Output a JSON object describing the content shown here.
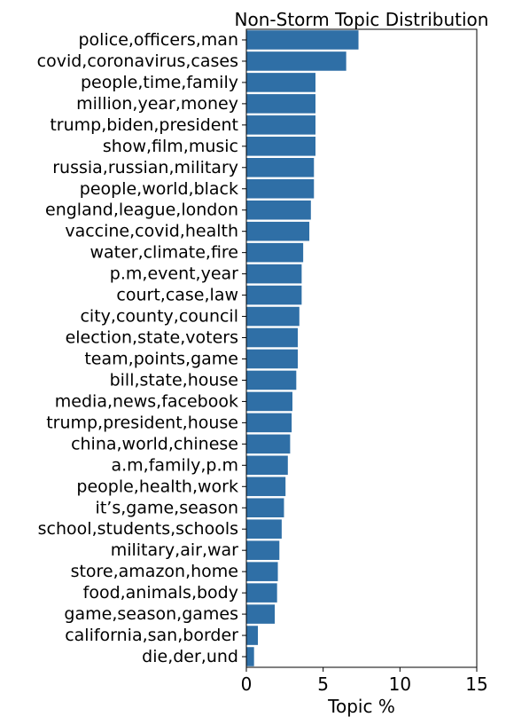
{
  "chart_data": {
    "type": "bar",
    "orientation": "horizontal",
    "title": "Non-Storm Topic Distribution",
    "xlabel": "Topic %",
    "ylabel": "",
    "xlim": [
      0,
      15
    ],
    "xticks": [
      0,
      5,
      10,
      15
    ],
    "grid": false,
    "bar_color": "#2f6fa6",
    "categories": [
      "police,officers,man",
      "covid,coronavirus,cases",
      "people,time,family",
      "million,year,money",
      "trump,biden,president",
      "show,film,music",
      "russia,russian,military",
      "people,world,black",
      "england,league,london",
      "vaccine,covid,health",
      "water,climate,fire",
      "p.m,event,year",
      "court,case,law",
      "city,county,council",
      "election,state,voters",
      "team,points,game",
      "bill,state,house",
      "media,news,facebook",
      "trump,president,house",
      "china,world,chinese",
      "a.m,family,p.m",
      "people,health,work",
      "it’s,game,season",
      "school,students,schools",
      "military,air,war",
      "store,amazon,home",
      "food,animals,body",
      "game,season,games",
      "california,san,border",
      "die,der,und"
    ],
    "values": [
      7.3,
      6.5,
      4.5,
      4.5,
      4.5,
      4.5,
      4.4,
      4.4,
      4.2,
      4.1,
      3.7,
      3.6,
      3.6,
      3.45,
      3.35,
      3.35,
      3.25,
      3.0,
      2.95,
      2.85,
      2.7,
      2.55,
      2.45,
      2.3,
      2.15,
      2.05,
      2.0,
      1.85,
      0.75,
      0.5
    ]
  }
}
